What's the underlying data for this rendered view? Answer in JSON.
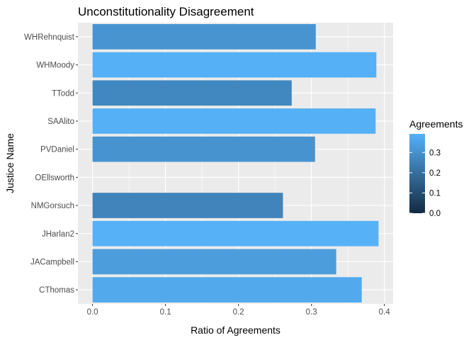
{
  "chart_data": {
    "type": "bar",
    "orientation": "horizontal",
    "title": "Unconstitutionality Disagreement",
    "xlabel": "Ratio of Agreements",
    "ylabel": "Justice Name",
    "categories": [
      "WHRehnquist",
      "WHMoody",
      "TTodd",
      "SAAlito",
      "PVDaniel",
      "OEllsworth",
      "NMGorsuch",
      "JHarlan2",
      "JACampbell",
      "CThomas"
    ],
    "values": [
      0.306,
      0.389,
      0.273,
      0.388,
      0.305,
      0,
      0.261,
      0.392,
      0.334,
      0.369
    ],
    "xlim": [
      -0.02,
      0.412
    ],
    "xticks": [
      0.0,
      0.1,
      0.2,
      0.3,
      0.4
    ],
    "xtick_labels": [
      "0.0",
      "0.1",
      "0.2",
      "0.3",
      "0.4"
    ],
    "grid": true,
    "panel_background": "#ebebeb",
    "grid_color": "#ffffff",
    "legend": {
      "title": "Agreements",
      "placement": "right",
      "type": "colorbar",
      "range": [
        0,
        0.392
      ],
      "ticks": [
        0.0,
        0.1,
        0.2,
        0.3
      ],
      "tick_labels": [
        "0.0",
        "0.1",
        "0.2",
        "0.3"
      ],
      "color_low": "#132b43",
      "color_high": "#56b1f7"
    }
  }
}
